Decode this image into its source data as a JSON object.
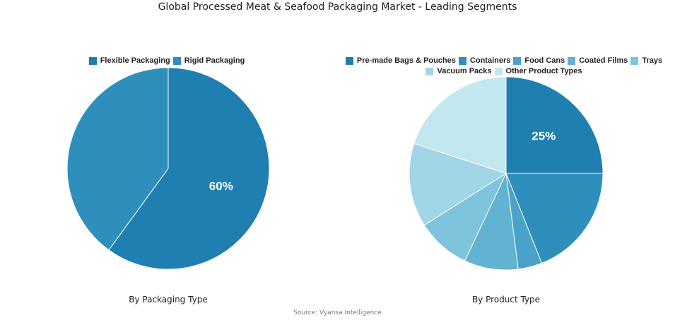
{
  "title": "Global Processed Meat & Seafood Packaging Market - Leading Segments",
  "source": "Source: Vyansa Intelligence",
  "chart_data": [
    {
      "type": "pie",
      "subtitle": "By Packaging Type",
      "categories": [
        "Flexible Packaging",
        "Rigid Packaging"
      ],
      "values": [
        60,
        40
      ],
      "colors": [
        "#1f7fb0",
        "#2e8fbd"
      ],
      "data_labels": [
        "60%",
        ""
      ],
      "legend": "top"
    },
    {
      "type": "pie",
      "subtitle": "By Product Type",
      "categories": [
        "Pre-made Bags & Pouches",
        "Containers",
        "Food Cans",
        "Coated Films",
        "Trays",
        "Vacuum Packs",
        "Other Product Types"
      ],
      "values": [
        25,
        19,
        4,
        9,
        9,
        14,
        20
      ],
      "colors": [
        "#1f7fb0",
        "#2e8fbd",
        "#4aa2c8",
        "#62b2d2",
        "#7fc4dd",
        "#a0d6e5",
        "#c3e7ef"
      ],
      "data_labels": [
        "25%",
        "",
        "",
        "",
        "",
        "",
        ""
      ],
      "legend": "top"
    }
  ]
}
